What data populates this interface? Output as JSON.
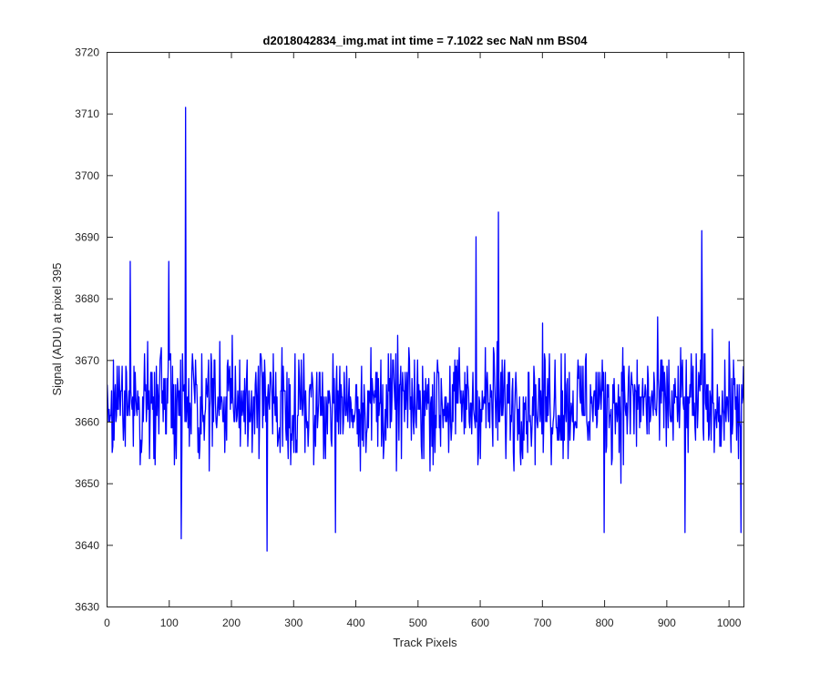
{
  "chart_data": {
    "type": "line",
    "title": "d2018042834_img.mat int time = 7.1022 sec  NaN nm BS04",
    "xlabel": "Track Pixels",
    "ylabel": "Signal (ADU) at pixel 395",
    "xlim": [
      0,
      1024
    ],
    "ylim": [
      3630,
      3720
    ],
    "x_ticks": [
      0,
      100,
      200,
      300,
      400,
      500,
      600,
      700,
      800,
      900,
      1000
    ],
    "y_ticks": [
      3630,
      3640,
      3650,
      3660,
      3670,
      3680,
      3690,
      3700,
      3710,
      3720
    ],
    "grid": false,
    "legend": "none",
    "series_color": "#0000ff",
    "series": [
      {
        "x_start": 1,
        "x_step": 1,
        "count": 1024,
        "mean": 3663,
        "noise_amplitude": 7,
        "min": 3639,
        "max": 3711,
        "notable_points": [
          {
            "x": 127,
            "y": 3711
          },
          {
            "x": 258,
            "y": 3639
          },
          {
            "x": 630,
            "y": 3694
          },
          {
            "x": 957,
            "y": 3691
          },
          {
            "x": 38,
            "y": 3686
          },
          {
            "x": 100,
            "y": 3686
          },
          {
            "x": 594,
            "y": 3690
          },
          {
            "x": 120,
            "y": 3641
          },
          {
            "x": 368,
            "y": 3642
          },
          {
            "x": 800,
            "y": 3642
          },
          {
            "x": 930,
            "y": 3642
          },
          {
            "x": 1020,
            "y": 3642
          }
        ]
      }
    ]
  }
}
